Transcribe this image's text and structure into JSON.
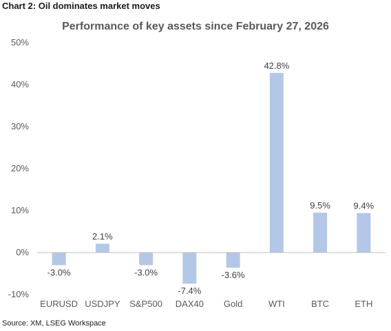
{
  "figure_title": "Chart 2: Oil dominates market moves",
  "source": "Source: XM, LSEG Workspace",
  "colors": {
    "bar": "#b4c7e7",
    "axis": "#bfbfbf",
    "text": "#595959"
  },
  "chart_data": {
    "type": "bar",
    "title": "Performance of key assets since February 27, 2026",
    "categories": [
      "EURUSD",
      "USDJPY",
      "S&P500",
      "DAX40",
      "Gold",
      "WTI",
      "BTC",
      "ETH"
    ],
    "values": [
      -3.0,
      2.1,
      -3.0,
      -7.4,
      -3.6,
      42.8,
      9.5,
      9.4
    ],
    "data_labels": [
      "-3.0%",
      "2.1%",
      "-3.0%",
      "-7.4%",
      "-3.6%",
      "42.8%",
      "9.5%",
      "9.4%"
    ],
    "y_ticks": [
      -10,
      0,
      10,
      20,
      30,
      40,
      50
    ],
    "y_tick_labels": [
      "-10%",
      "0%",
      "10%",
      "20%",
      "30%",
      "40%",
      "50%"
    ],
    "ylim": [
      -10,
      50
    ],
    "xlabel": "",
    "ylabel": "",
    "grid": false,
    "legend": "none"
  }
}
